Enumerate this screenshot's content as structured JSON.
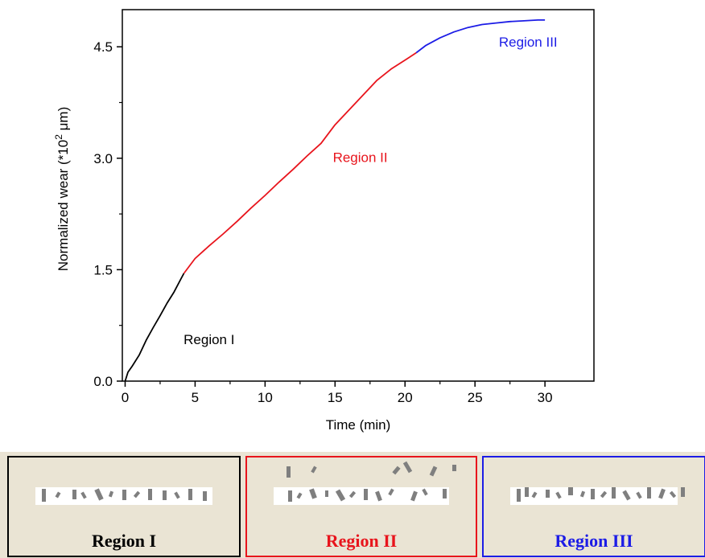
{
  "chart_data": {
    "type": "line",
    "xlabel": "Time (min)",
    "ylabel_main": "Normalized wear (*10",
    "ylabel_sup": "2",
    "ylabel_unit": " μm)",
    "xlim": [
      -0.2,
      33.5
    ],
    "ylim": [
      0,
      5.0
    ],
    "x_ticks": [
      0,
      5,
      10,
      15,
      20,
      25,
      30
    ],
    "x_tick_labels": [
      "0",
      "5",
      "10",
      "15",
      "20",
      "25",
      "30"
    ],
    "y_ticks": [
      0,
      1.5,
      3.0,
      4.5
    ],
    "y_tick_labels": [
      "0.0",
      "1.5",
      "3.0",
      "4.5"
    ],
    "grid": false,
    "series": [
      {
        "name": "Region I",
        "color": "#000000",
        "x": [
          0,
          0.2,
          0.5,
          1.0,
          1.5,
          2.0,
          2.5,
          3.0,
          3.5,
          4.0,
          4.2
        ],
        "y": [
          0.0,
          0.12,
          0.2,
          0.35,
          0.55,
          0.72,
          0.88,
          1.05,
          1.2,
          1.38,
          1.45
        ]
      },
      {
        "name": "Region II",
        "color": "#e8141c",
        "x": [
          4.2,
          5,
          6,
          7,
          8,
          9,
          10,
          11,
          12,
          13,
          14,
          15,
          16,
          17,
          18,
          19,
          20,
          20.8
        ],
        "y": [
          1.45,
          1.65,
          1.82,
          1.98,
          2.15,
          2.33,
          2.5,
          2.68,
          2.85,
          3.03,
          3.2,
          3.45,
          3.65,
          3.85,
          4.05,
          4.2,
          4.32,
          4.42
        ]
      },
      {
        "name": "Region III",
        "color": "#1c1ce6",
        "x": [
          20.8,
          21.5,
          22.5,
          23.5,
          24.5,
          25.5,
          26.5,
          27.5,
          28.5,
          29.5,
          30.0
        ],
        "y": [
          4.42,
          4.52,
          4.62,
          4.7,
          4.76,
          4.8,
          4.82,
          4.84,
          4.85,
          4.86,
          4.86
        ]
      }
    ],
    "annotations": [
      {
        "text": "Region I",
        "x": 6.0,
        "y": 0.5,
        "color": "#000000"
      },
      {
        "text": "Region II",
        "x": 16.8,
        "y": 2.95,
        "color": "#e8141c"
      },
      {
        "text": "Region III",
        "x": 28.8,
        "y": 4.5,
        "color": "#1c1ce6"
      }
    ]
  },
  "panels": [
    {
      "label": "Region I",
      "border": "#000000",
      "text_color": "#000000"
    },
    {
      "label": "Region II",
      "border": "#e8141c",
      "text_color": "#e8141c"
    },
    {
      "label": "Region III",
      "border": "#1c1ce6",
      "text_color": "#1c1ce6"
    }
  ],
  "colors": {
    "panel_bg": "#eae4d4",
    "panel_strip": "#ffffff",
    "particle": "#7f7f7f"
  }
}
